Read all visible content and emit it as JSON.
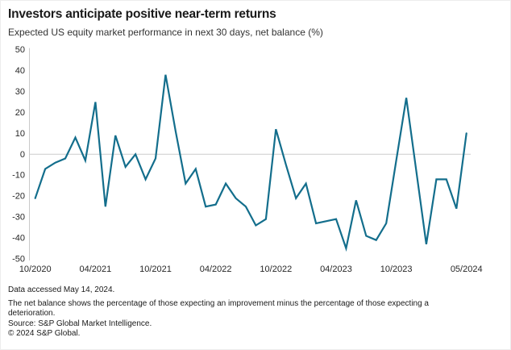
{
  "header": {
    "title": "Investors anticipate positive near-term returns",
    "subtitle": "Expected US equity market performance in next 30 days, net balance (%)"
  },
  "footer": {
    "accessed": "Data accessed May 14, 2024.",
    "note": "The net balance shows the percentage of those expecting an improvement minus the percentage of those expecting a deterioration.",
    "source": "Source: S&P Global Market Intelligence.",
    "copyright": "© 2024 S&P Global."
  },
  "colors": {
    "line": "#136e8c",
    "axis": "#c9c9c9",
    "zero_gridline": "#cccccc",
    "tick_text": "#262626"
  },
  "chart_data": {
    "type": "line",
    "title": "Investors anticipate positive near-term returns",
    "subtitle": "Expected US equity market performance in next 30 days, net balance (%)",
    "xlabel": "",
    "ylabel": "net balance (%)",
    "ylim": [
      -50,
      50
    ],
    "grid": "zero-line-only",
    "legend": "none",
    "line_color": "#136e8c",
    "x": [
      "10/2020",
      "11/2020",
      "12/2020",
      "01/2021",
      "02/2021",
      "03/2021",
      "04/2021",
      "05/2021",
      "06/2021",
      "07/2021",
      "08/2021",
      "09/2021",
      "10/2021",
      "11/2021",
      "12/2021",
      "01/2022",
      "02/2022",
      "03/2022",
      "04/2022",
      "05/2022",
      "06/2022",
      "07/2022",
      "08/2022",
      "09/2022",
      "10/2022",
      "11/2022",
      "12/2022",
      "01/2023",
      "02/2023",
      "03/2023",
      "04/2023",
      "05/2023",
      "06/2023",
      "07/2023",
      "08/2023",
      "09/2023",
      "10/2023",
      "11/2023",
      "12/2023",
      "01/2024",
      "02/2024",
      "03/2024",
      "04/2024",
      "05/2024"
    ],
    "values": [
      -21,
      -7,
      -4,
      -2,
      8,
      -3,
      25,
      -25,
      9,
      -6,
      0,
      -12,
      -2,
      38,
      11,
      -14,
      -7,
      -25,
      -24,
      -14,
      -21,
      -25,
      -34,
      -31,
      12,
      -5,
      -21,
      -14,
      -33,
      -32,
      -31,
      -45,
      -22,
      -39,
      -41,
      -33,
      -3,
      27,
      -8,
      -43,
      -12,
      -12,
      -26,
      10
    ],
    "y_ticks": [
      50,
      40,
      30,
      20,
      10,
      0,
      -10,
      -20,
      -30,
      -40,
      -50
    ],
    "x_tick_indices": [
      0,
      6,
      12,
      18,
      24,
      30,
      36,
      43
    ],
    "x_tick_labels": [
      "10/2020",
      "04/2021",
      "10/2021",
      "04/2022",
      "10/2022",
      "04/2023",
      "10/2023",
      "05/2024"
    ]
  }
}
